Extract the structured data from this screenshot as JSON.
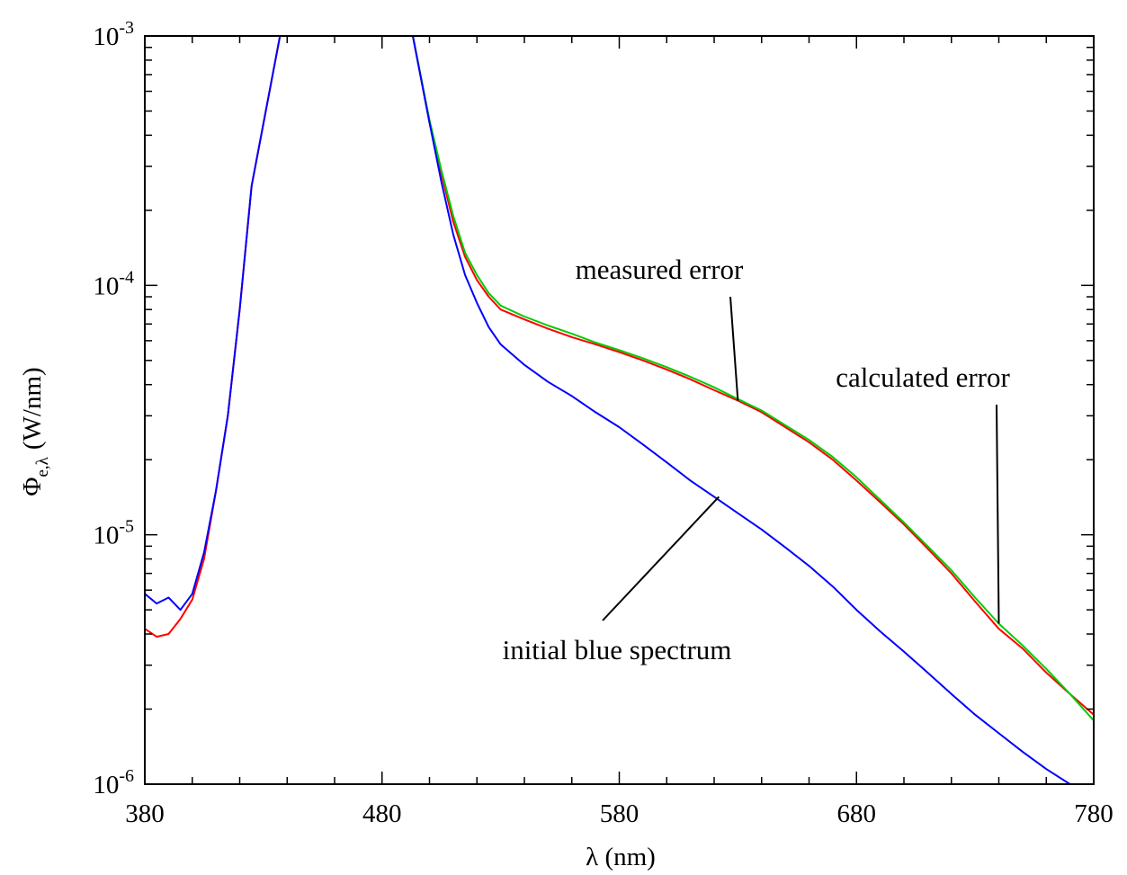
{
  "chart_data": {
    "type": "line",
    "x_label": "λ (nm)",
    "y_label": {
      "symbol": "Φ",
      "subscript": "e,λ",
      "unit": "(W/nm)"
    },
    "x_range": [
      380,
      780
    ],
    "y_range": [
      1e-06,
      0.001
    ],
    "y_scale": "log",
    "grid": false,
    "x_ticks": [
      {
        "value": 380,
        "label": "380"
      },
      {
        "value": 480,
        "label": "480"
      },
      {
        "value": 580,
        "label": "580"
      },
      {
        "value": 680,
        "label": "680"
      },
      {
        "value": 780,
        "label": "780"
      }
    ],
    "y_ticks": [
      {
        "value": 0.001,
        "base": "10",
        "exp": "-3"
      },
      {
        "value": 0.0001,
        "base": "10",
        "exp": "-4"
      },
      {
        "value": 1e-05,
        "base": "10",
        "exp": "-5"
      },
      {
        "value": 1e-06,
        "base": "10",
        "exp": "-6"
      }
    ],
    "series": [
      {
        "color": "#ff0000",
        "x": [
          380,
          385,
          390,
          395,
          400,
          405,
          410,
          415,
          420,
          425,
          437,
          493,
          500,
          505,
          510,
          515,
          520,
          525,
          530,
          540,
          550,
          560,
          570,
          580,
          590,
          600,
          610,
          620,
          630,
          640,
          650,
          660,
          670,
          680,
          690,
          700,
          710,
          720,
          730,
          740,
          750,
          760,
          770,
          780
        ],
        "y": [
          4.2e-06,
          3.9e-06,
          4e-06,
          4.6e-06,
          5.5e-06,
          8e-06,
          1.5e-05,
          3e-05,
          8e-05,
          0.00025,
          0.001,
          0.001,
          0.00045,
          0.00028,
          0.00018,
          0.00013,
          0.000105,
          9e-05,
          8e-05,
          7.3e-05,
          6.7e-05,
          6.2e-05,
          5.8e-05,
          5.4e-05,
          5e-05,
          4.6e-05,
          4.2e-05,
          3.8e-05,
          3.45e-05,
          3.1e-05,
          2.7e-05,
          2.35e-05,
          2e-05,
          1.65e-05,
          1.35e-05,
          1.1e-05,
          8.8e-06,
          7e-06,
          5.4e-06,
          4.2e-06,
          3.5e-06,
          2.8e-06,
          2.3e-06,
          1.9e-06
        ]
      },
      {
        "color": "#00cc00",
        "x": [
          493,
          500,
          505,
          510,
          515,
          520,
          525,
          530,
          540,
          550,
          560,
          570,
          580,
          590,
          600,
          610,
          620,
          630,
          640,
          650,
          660,
          670,
          680,
          690,
          700,
          710,
          720,
          730,
          740,
          750,
          760,
          770,
          780
        ],
        "y": [
          0.001,
          0.00046,
          0.00029,
          0.00019,
          0.000135,
          0.00011,
          9.3e-05,
          8.3e-05,
          7.5e-05,
          6.9e-05,
          6.4e-05,
          5.9e-05,
          5.5e-05,
          5.1e-05,
          4.7e-05,
          4.3e-05,
          3.9e-05,
          3.5e-05,
          3.15e-05,
          2.75e-05,
          2.4e-05,
          2.05e-05,
          1.7e-05,
          1.38e-05,
          1.12e-05,
          9e-06,
          7.2e-06,
          5.6e-06,
          4.4e-06,
          3.6e-06,
          2.9e-06,
          2.3e-06,
          1.8e-06
        ]
      },
      {
        "color": "#0000ff",
        "x": [
          380,
          385,
          390,
          395,
          400,
          405,
          410,
          415,
          420,
          425,
          437,
          493,
          500,
          505,
          510,
          515,
          520,
          525,
          530,
          540,
          550,
          560,
          570,
          580,
          590,
          600,
          610,
          620,
          630,
          640,
          650,
          660,
          670,
          680,
          690,
          700,
          710,
          720,
          730,
          740,
          750,
          760,
          770,
          780
        ],
        "y": [
          5.8e-06,
          5.3e-06,
          5.6e-06,
          5e-06,
          5.8e-06,
          8.5e-06,
          1.5e-05,
          3e-05,
          8e-05,
          0.00025,
          0.001,
          0.001,
          0.00045,
          0.00026,
          0.00016,
          0.00011,
          8.5e-05,
          6.8e-05,
          5.8e-05,
          4.8e-05,
          4.1e-05,
          3.6e-05,
          3.1e-05,
          2.7e-05,
          2.3e-05,
          1.95e-05,
          1.65e-05,
          1.42e-05,
          1.22e-05,
          1.05e-05,
          8.9e-06,
          7.5e-06,
          6.2e-06,
          5e-06,
          4.1e-06,
          3.4e-06,
          2.8e-06,
          2.3e-06,
          1.9e-06,
          1.6e-06,
          1.35e-06,
          1.15e-06,
          1e-06,
          1e-06
        ]
      }
    ],
    "annotations": [
      {
        "text": "measured error",
        "target_x": 630,
        "target_y": 3.45e-05
      },
      {
        "text": "calculated error",
        "target_x": 740,
        "target_y": 4.4e-06
      },
      {
        "text": "initial blue spectrum",
        "target_x": 622,
        "target_y": 1.42e-05
      }
    ]
  }
}
